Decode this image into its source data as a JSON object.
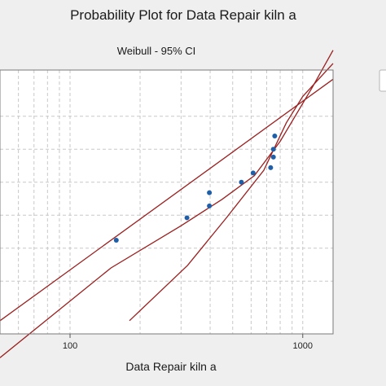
{
  "chart_data": {
    "type": "scatter",
    "title": "Probability Plot for Data Repair kiln a",
    "subtitle": "Weibull - 95% CI",
    "xlabel": "Data Repair kiln a",
    "ylabel": "",
    "x_scale": "log",
    "xlim": [
      50,
      1350
    ],
    "x_ticks": [
      100,
      1000
    ],
    "x_tick_labels": [
      "100",
      "1000"
    ],
    "grid": true,
    "points": [
      {
        "x": 158,
        "y": 0.31
      },
      {
        "x": 318,
        "y": 0.48
      },
      {
        "x": 397,
        "y": 0.57
      },
      {
        "x": 397,
        "y": 0.67
      },
      {
        "x": 545,
        "y": 0.75
      },
      {
        "x": 612,
        "y": 0.82
      },
      {
        "x": 728,
        "y": 0.86
      },
      {
        "x": 748,
        "y": 0.94
      },
      {
        "x": 748,
        "y": 1.0
      },
      {
        "x": 758,
        "y": 1.1
      }
    ],
    "fit_line": [
      [
        50,
        -0.3
      ],
      [
        1350,
        1.53
      ]
    ],
    "ci_lower": [
      [
        50,
        -0.58
      ],
      [
        150,
        0.1
      ],
      [
        300,
        0.42
      ],
      [
        450,
        0.62
      ],
      [
        620,
        0.8
      ],
      [
        800,
        1.06
      ],
      [
        1100,
        1.47
      ],
      [
        1350,
        1.75
      ]
    ],
    "ci_upper": [
      [
        180,
        -0.3
      ],
      [
        320,
        0.12
      ],
      [
        470,
        0.48
      ],
      [
        680,
        0.84
      ],
      [
        850,
        1.2
      ],
      [
        1000,
        1.4
      ],
      [
        1350,
        1.65
      ]
    ],
    "colors": {
      "point": "#1f5fa8",
      "lines": "#9b1f1f",
      "grid": "#c8c8c8",
      "plot_bg": "#ffffff",
      "figure_bg": "#efefef"
    }
  }
}
